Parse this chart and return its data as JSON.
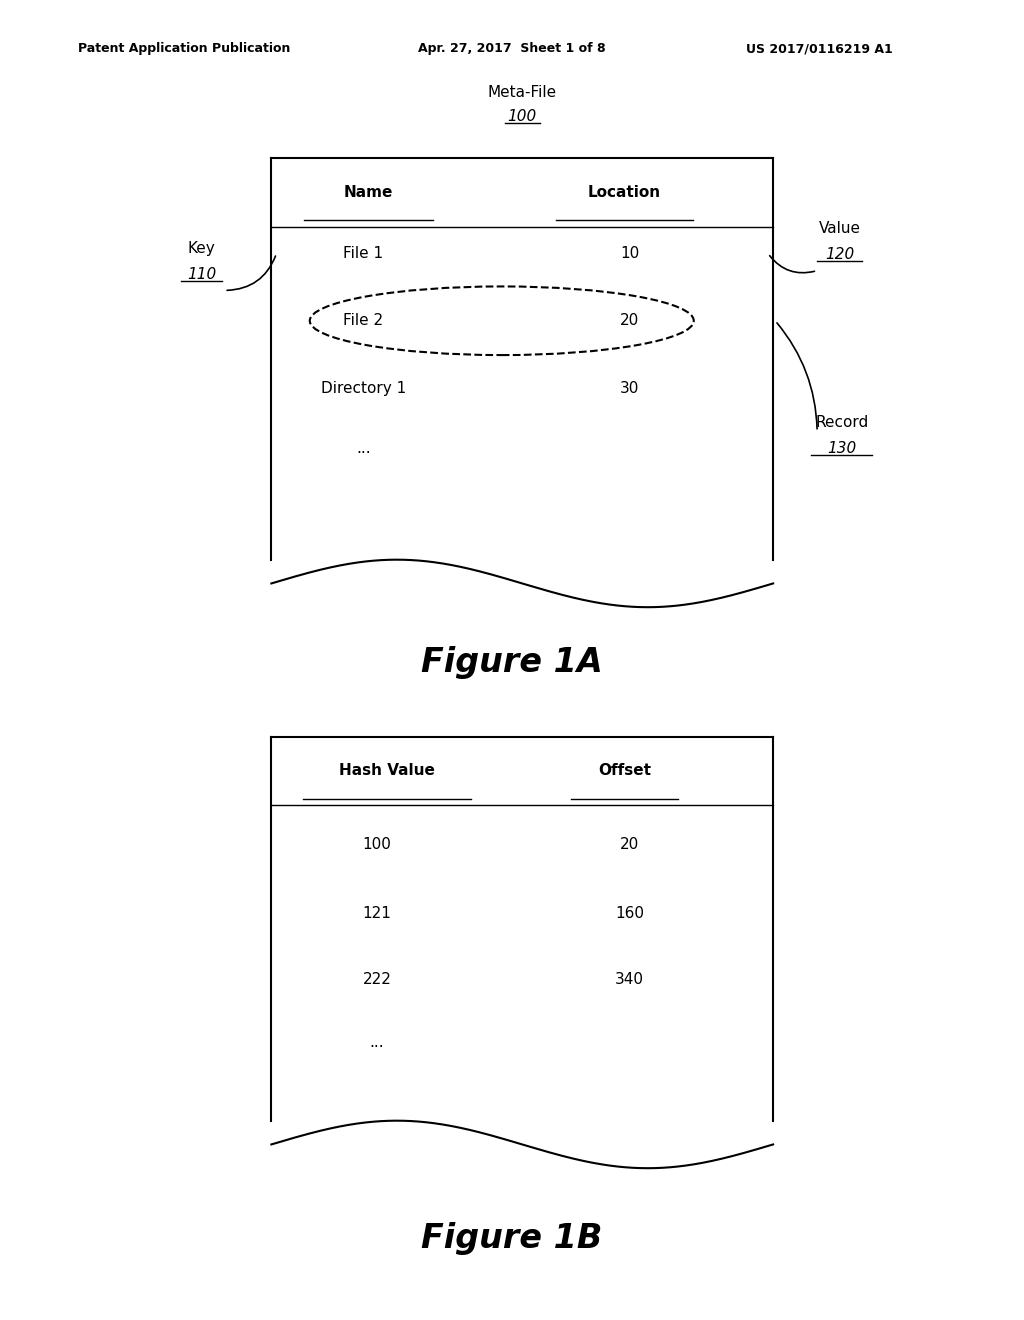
{
  "bg_color": "#ffffff",
  "header_left": "Patent Application Publication",
  "header_mid": "Apr. 27, 2017  Sheet 1 of 8",
  "header_right": "US 2017/0116219 A1",
  "fig1a_title": "Meta-File",
  "fig1a_ref": "100",
  "fig1a_col1_header": "Name",
  "fig1a_col2_header": "Location",
  "fig1a_rows": [
    [
      "File 1",
      "10"
    ],
    [
      "File 2",
      "20"
    ],
    [
      "Directory 1",
      "30"
    ],
    [
      "...",
      ""
    ]
  ],
  "fig1a_caption": "Figure 1A",
  "fig1b_col1_header": "Hash Value",
  "fig1b_col2_header": "Offset",
  "fig1b_rows": [
    [
      "100",
      "20"
    ],
    [
      "121",
      "160"
    ],
    [
      "222",
      "340"
    ],
    [
      "...",
      ""
    ]
  ],
  "fig1b_caption": "Figure 1B"
}
